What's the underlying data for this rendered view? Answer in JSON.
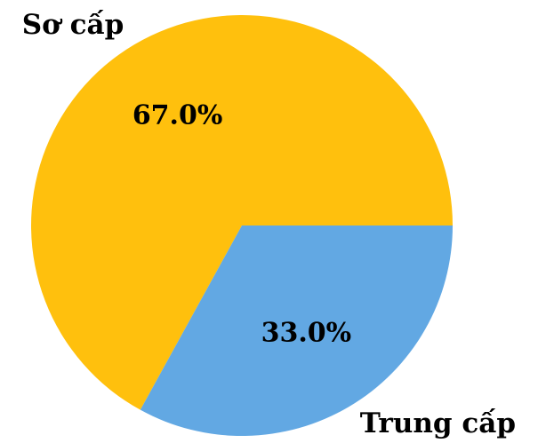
{
  "chart_data": {
    "type": "pie",
    "categories": [
      "Sơ cấp",
      "Trung cấp"
    ],
    "values": [
      67,
      33
    ],
    "value_labels": [
      "67.0%",
      "33.0%"
    ],
    "colors": [
      "#ffc00d",
      "#62a8e3"
    ]
  }
}
